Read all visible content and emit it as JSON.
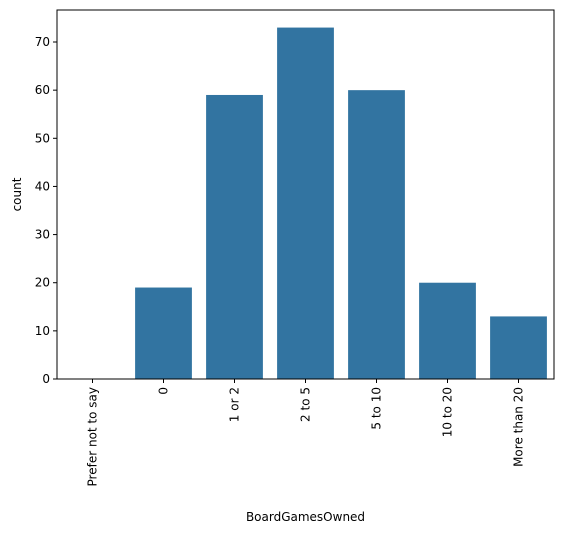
{
  "chart_data": {
    "type": "bar",
    "categories": [
      "Prefer not to say",
      "0",
      "1 or 2",
      "2 to 5",
      "5 to 10",
      "10 to 20",
      "More than 20"
    ],
    "values": [
      0,
      19,
      59,
      73,
      60,
      20,
      13
    ],
    "xlabel": "BoardGamesOwned",
    "ylabel": "count",
    "ylim": [
      0,
      76.65
    ],
    "yticks": [
      0,
      10,
      20,
      30,
      40,
      50,
      60,
      70
    ],
    "grid": false,
    "bar_color": "#3274a1"
  }
}
